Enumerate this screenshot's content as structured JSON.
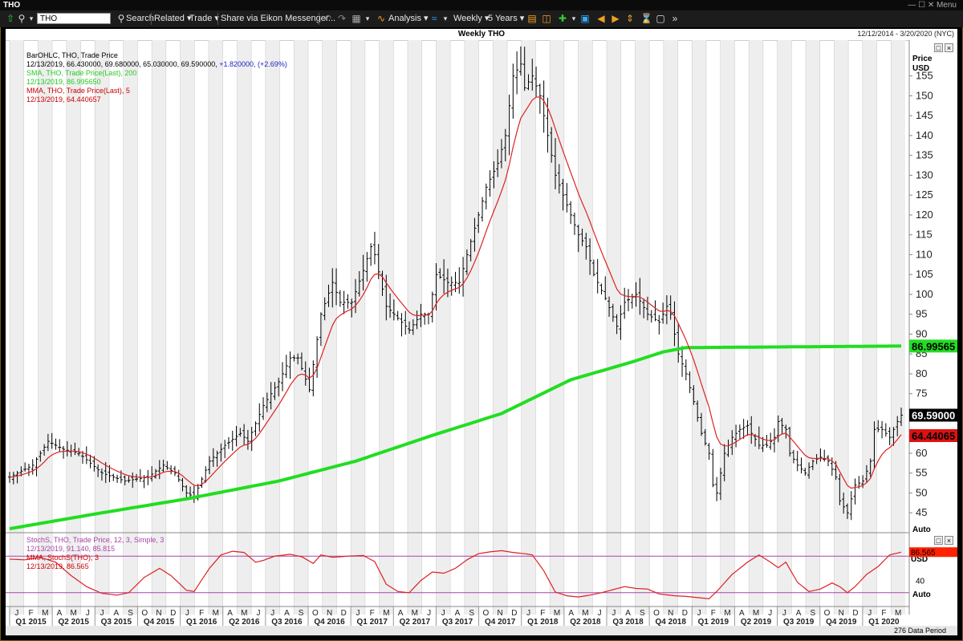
{
  "window": {
    "title": "THO",
    "controls": "— ☐ ✕ Menu"
  },
  "toolbar": {
    "ric": "THO",
    "search": "Search",
    "related": "Related ▾",
    "trade": "Trade ▾",
    "share": "Share via Eikon Messenger...",
    "analysis": "Analysis ▾",
    "period": "Weekly ▾",
    "range": "5 Years ▾"
  },
  "chart": {
    "title": "Weekly THO",
    "date_range": "12/12/2014 - 3/20/2020 (NYC)",
    "status": "276 Data Period"
  },
  "legend_main": [
    {
      "text": "BarOHLC, THO, Trade Price",
      "color": "#000000"
    },
    {
      "text": "12/13/2019, 66.430000, 69.680000, 65.030000, 69.590000,",
      "color": "#000000"
    },
    {
      "text": "SMA, THO, Trade Price(Last),  200",
      "color": "#22cc22"
    },
    {
      "text": "12/13/2019, 86.995650",
      "color": "#22cc22"
    },
    {
      "text": "MMA, THO, Trade Price(Last),  5",
      "color": "#cc0000"
    },
    {
      "text": "12/13/2019, 64.440657",
      "color": "#cc0000"
    }
  ],
  "legend_main_change": "+1.820000, (+2.69%)",
  "legend_lower": [
    {
      "text": "StochS, THO, Trade Price,  12, 3, Simple,  3",
      "color": "#aa44aa"
    },
    {
      "text": "12/13/2019, 91.140, 85.815",
      "color": "#aa44aa"
    },
    {
      "text": "MMA, StochS(THO),  3",
      "color": "#cc0000"
    },
    {
      "text": "12/13/2019, 86.565",
      "color": "#cc0000"
    }
  ],
  "axis": {
    "price_label": "Price",
    "currency": "USD",
    "auto": "Auto",
    "lower_usd": "USD",
    "lower_tick": "40",
    "price_ticks": [
      "45",
      "50",
      "55",
      "60",
      "65",
      "70",
      "75",
      "80",
      "85",
      "90",
      "95",
      "100",
      "105",
      "110",
      "115",
      "120",
      "125",
      "130",
      "135",
      "140",
      "145",
      "150",
      "155"
    ],
    "month_letters": [
      "J",
      "F",
      "M",
      "A",
      "M",
      "J",
      "J",
      "A",
      "S",
      "O",
      "N",
      "D",
      "J",
      "F",
      "M",
      "A",
      "M",
      "J",
      "J",
      "A",
      "S",
      "O",
      "N",
      "D",
      "J",
      "F",
      "M",
      "A",
      "M",
      "J",
      "J",
      "A",
      "S",
      "O",
      "N",
      "D",
      "J",
      "F",
      "M",
      "A",
      "M",
      "J",
      "J",
      "A",
      "S",
      "O",
      "N",
      "D",
      "J",
      "F",
      "M",
      "A",
      "M",
      "J",
      "J",
      "A",
      "S",
      "O",
      "N",
      "D",
      "J",
      "F",
      "M"
    ],
    "quarters": [
      "Q1 2015",
      "Q2 2015",
      "Q3 2015",
      "Q4 2015",
      "Q1 2016",
      "Q2 2016",
      "Q3 2016",
      "Q4 2016",
      "Q1 2017",
      "Q2 2017",
      "Q3 2017",
      "Q4 2017",
      "Q1 2018",
      "Q2 2018",
      "Q3 2018",
      "Q4 2018",
      "Q1 2019",
      "Q2 2019",
      "Q3 2019",
      "Q4 2019",
      "Q1 2020"
    ]
  },
  "badges": {
    "sma": "86.99565",
    "last": "69.59000",
    "mma": "64.44065",
    "stoch": "86.565"
  },
  "colors": {
    "bars": "#000000",
    "sma": "#22dd22",
    "mma": "#dd2222",
    "stoch_line": "#dd2222",
    "stoch_level": "#aa44aa",
    "band": "#eeeeee"
  },
  "chart_data": {
    "type": "line",
    "price_ylim": [
      40,
      162
    ],
    "stoch_levels": [
      80,
      20
    ],
    "close_anchors": [
      [
        0,
        54
      ],
      [
        6,
        57
      ],
      [
        10,
        63
      ],
      [
        14,
        61
      ],
      [
        18,
        60
      ],
      [
        24,
        55
      ],
      [
        30,
        53
      ],
      [
        36,
        54
      ],
      [
        40,
        57
      ],
      [
        43,
        55
      ],
      [
        46,
        50
      ],
      [
        48,
        49
      ],
      [
        52,
        58
      ],
      [
        56,
        62
      ],
      [
        60,
        65
      ],
      [
        62,
        63
      ],
      [
        66,
        72
      ],
      [
        70,
        78
      ],
      [
        73,
        84
      ],
      [
        75,
        84
      ],
      [
        78,
        76
      ],
      [
        81,
        95
      ],
      [
        84,
        103
      ],
      [
        86,
        98
      ],
      [
        89,
        98
      ],
      [
        92,
        106
      ],
      [
        94,
        112
      ],
      [
        95,
        110
      ],
      [
        98,
        97
      ],
      [
        101,
        94
      ],
      [
        104,
        91
      ],
      [
        107,
        95
      ],
      [
        109,
        95
      ],
      [
        111,
        105
      ],
      [
        114,
        103
      ],
      [
        117,
        103
      ],
      [
        119,
        110
      ],
      [
        122,
        120
      ],
      [
        124,
        127
      ],
      [
        127,
        133
      ],
      [
        129,
        140
      ],
      [
        131,
        155
      ],
      [
        133,
        158
      ],
      [
        134,
        152
      ],
      [
        136,
        155
      ],
      [
        138,
        150
      ],
      [
        140,
        140
      ],
      [
        142,
        130
      ],
      [
        144,
        125
      ],
      [
        146,
        120
      ],
      [
        148,
        115
      ],
      [
        150,
        112
      ],
      [
        152,
        105
      ],
      [
        155,
        99
      ],
      [
        158,
        92
      ],
      [
        160,
        98
      ],
      [
        163,
        100
      ],
      [
        166,
        95
      ],
      [
        169,
        93
      ],
      [
        171,
        97
      ],
      [
        172,
        95
      ],
      [
        174,
        85
      ],
      [
        176,
        80
      ],
      [
        178,
        73
      ],
      [
        180,
        65
      ],
      [
        182,
        60
      ],
      [
        183,
        52
      ],
      [
        184,
        50
      ],
      [
        186,
        60
      ],
      [
        188,
        64
      ],
      [
        190,
        66
      ],
      [
        192,
        67
      ],
      [
        193,
        65
      ],
      [
        195,
        62
      ],
      [
        197,
        62
      ],
      [
        199,
        64
      ],
      [
        200,
        68
      ],
      [
        202,
        66
      ],
      [
        203,
        60
      ],
      [
        205,
        57
      ],
      [
        207,
        55
      ],
      [
        209,
        58
      ],
      [
        211,
        59
      ],
      [
        213,
        58
      ],
      [
        215,
        54
      ],
      [
        216,
        48
      ],
      [
        218,
        45
      ],
      [
        220,
        52
      ],
      [
        222,
        53
      ],
      [
        224,
        58
      ],
      [
        225,
        66
      ],
      [
        227,
        66
      ],
      [
        229,
        64
      ],
      [
        231,
        68
      ],
      [
        232,
        69.59
      ]
    ],
    "sma200_anchors": [
      [
        0,
        41
      ],
      [
        24,
        45
      ],
      [
        46,
        48.5
      ],
      [
        70,
        53
      ],
      [
        90,
        58
      ],
      [
        110,
        64.5
      ],
      [
        128,
        70
      ],
      [
        146,
        78.5
      ],
      [
        162,
        83
      ],
      [
        170,
        85.5
      ],
      [
        176,
        86.6
      ],
      [
        232,
        86.99565
      ]
    ],
    "stoch_anchors": [
      [
        0,
        75
      ],
      [
        4,
        74
      ],
      [
        8,
        78
      ],
      [
        12,
        70
      ],
      [
        16,
        48
      ],
      [
        20,
        30
      ],
      [
        24,
        19
      ],
      [
        28,
        16
      ],
      [
        31,
        20
      ],
      [
        35,
        45
      ],
      [
        39,
        60
      ],
      [
        42,
        48
      ],
      [
        46,
        24
      ],
      [
        48,
        22
      ],
      [
        52,
        60
      ],
      [
        55,
        82
      ],
      [
        58,
        88
      ],
      [
        61,
        86
      ],
      [
        64,
        70
      ],
      [
        66,
        73
      ],
      [
        69,
        80
      ],
      [
        73,
        83
      ],
      [
        76,
        79
      ],
      [
        79,
        68
      ],
      [
        81,
        82
      ],
      [
        84,
        78
      ],
      [
        88,
        80
      ],
      [
        92,
        81
      ],
      [
        95,
        71
      ],
      [
        98,
        34
      ],
      [
        101,
        22
      ],
      [
        104,
        20
      ],
      [
        107,
        40
      ],
      [
        110,
        54
      ],
      [
        113,
        52
      ],
      [
        116,
        60
      ],
      [
        119,
        74
      ],
      [
        122,
        84
      ],
      [
        125,
        87
      ],
      [
        128,
        89
      ],
      [
        131,
        86
      ],
      [
        134,
        84
      ],
      [
        136,
        82
      ],
      [
        139,
        56
      ],
      [
        142,
        21
      ],
      [
        145,
        15
      ],
      [
        148,
        13
      ],
      [
        151,
        16
      ],
      [
        154,
        20
      ],
      [
        157,
        25
      ],
      [
        160,
        30
      ],
      [
        163,
        27
      ],
      [
        166,
        26
      ],
      [
        169,
        18
      ],
      [
        173,
        15
      ],
      [
        176,
        14
      ],
      [
        179,
        12
      ],
      [
        182,
        10
      ],
      [
        184,
        22
      ],
      [
        188,
        50
      ],
      [
        192,
        70
      ],
      [
        195,
        82
      ],
      [
        198,
        70
      ],
      [
        200,
        61
      ],
      [
        202,
        70
      ],
      [
        205,
        37
      ],
      [
        208,
        22
      ],
      [
        211,
        26
      ],
      [
        214,
        36
      ],
      [
        216,
        30
      ],
      [
        218,
        20
      ],
      [
        220,
        30
      ],
      [
        223,
        50
      ],
      [
        226,
        63
      ],
      [
        229,
        82
      ],
      [
        232,
        86.565
      ]
    ]
  }
}
